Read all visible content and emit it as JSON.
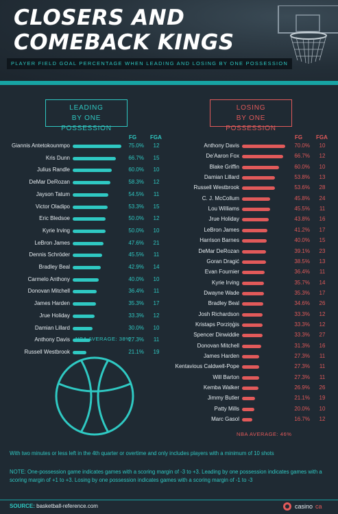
{
  "header": {
    "title_line1": "CLOSERS AND",
    "title_line2": "COMEBACK KINGS",
    "subtitle": "PLAYER FIELD GOAL PERCENTAGE WHEN LEADING AND LOSING BY ONE POSSESSION"
  },
  "leading": {
    "label_line1": "LEADING",
    "label_line2": "BY ONE POSSESSION",
    "fg_header": "FG",
    "fga_header": "FGA",
    "average": "NBA AVERAGE: 38%",
    "rows": [
      {
        "name": "Giannis Antetokounmpo",
        "fg": "75.0%",
        "fga": "12",
        "pct": 75.0
      },
      {
        "name": "Kris Dunn",
        "fg": "66.7%",
        "fga": "15",
        "pct": 66.7
      },
      {
        "name": "Julius Randle",
        "fg": "60.0%",
        "fga": "10",
        "pct": 60.0
      },
      {
        "name": "DeMar DeRozan",
        "fg": "58.3%",
        "fga": "12",
        "pct": 58.3
      },
      {
        "name": "Jayson Tatum",
        "fg": "54.5%",
        "fga": "11",
        "pct": 54.5
      },
      {
        "name": "Victor Oladipo",
        "fg": "53.3%",
        "fga": "15",
        "pct": 53.3
      },
      {
        "name": "Eric Bledsoe",
        "fg": "50.0%",
        "fga": "12",
        "pct": 50.0
      },
      {
        "name": "Kyrie Irving",
        "fg": "50.0%",
        "fga": "10",
        "pct": 50.0
      },
      {
        "name": "LeBron James",
        "fg": "47.6%",
        "fga": "21",
        "pct": 47.6
      },
      {
        "name": "Dennis Schröder",
        "fg": "45.5%",
        "fga": "11",
        "pct": 45.5
      },
      {
        "name": "Bradley Beal",
        "fg": "42.9%",
        "fga": "14",
        "pct": 42.9
      },
      {
        "name": "Carmelo Anthony",
        "fg": "40.0%",
        "fga": "10",
        "pct": 40.0
      },
      {
        "name": "Donovan Mitchell",
        "fg": "36.4%",
        "fga": "11",
        "pct": 36.4
      },
      {
        "name": "James Harden",
        "fg": "35.3%",
        "fga": "17",
        "pct": 35.3
      },
      {
        "name": "Jrue Holiday",
        "fg": "33.3%",
        "fga": "12",
        "pct": 33.3
      },
      {
        "name": "Damian Lillard",
        "fg": "30.0%",
        "fga": "10",
        "pct": 30.0
      },
      {
        "name": "Anthony Davis",
        "fg": "27.3%",
        "fga": "11",
        "pct": 27.3
      },
      {
        "name": "Russell Westbrook",
        "fg": "21.1%",
        "fga": "19",
        "pct": 21.1
      }
    ]
  },
  "losing": {
    "label_line1": "LOSING",
    "label_line2": "BY ONE POSSESSION",
    "fg_header": "FG",
    "fga_header": "FGA",
    "average": "NBA AVERAGE: 46%",
    "rows": [
      {
        "name": "Anthony Davis",
        "fg": "70.0%",
        "fga": "10",
        "pct": 70.0
      },
      {
        "name": "De'Aaron Fox",
        "fg": "66.7%",
        "fga": "12",
        "pct": 66.7
      },
      {
        "name": "Blake Griffin",
        "fg": "60.0%",
        "fga": "10",
        "pct": 60.0
      },
      {
        "name": "Damian Lillard",
        "fg": "53.8%",
        "fga": "13",
        "pct": 53.8
      },
      {
        "name": "Russell Westbrook",
        "fg": "53.6%",
        "fga": "28",
        "pct": 53.6
      },
      {
        "name": "C. J. McCollum",
        "fg": "45.8%",
        "fga": "24",
        "pct": 45.8
      },
      {
        "name": "Lou Williams",
        "fg": "45.5%",
        "fga": "11",
        "pct": 45.5
      },
      {
        "name": "Jrue Holiday",
        "fg": "43.8%",
        "fga": "16",
        "pct": 43.8
      },
      {
        "name": "LeBron James",
        "fg": "41.2%",
        "fga": "17",
        "pct": 41.2
      },
      {
        "name": "Harrison Barnes",
        "fg": "40.0%",
        "fga": "15",
        "pct": 40.0
      },
      {
        "name": "DeMar DeRozan",
        "fg": "39.1%",
        "fga": "23",
        "pct": 39.1
      },
      {
        "name": "Goran Dragić",
        "fg": "38.5%",
        "fga": "13",
        "pct": 38.5
      },
      {
        "name": "Evan Fournier",
        "fg": "36.4%",
        "fga": "11",
        "pct": 36.4
      },
      {
        "name": "Kyrie Irving",
        "fg": "35.7%",
        "fga": "14",
        "pct": 35.7
      },
      {
        "name": "Dwayne Wade",
        "fg": "35.3%",
        "fga": "17",
        "pct": 35.3
      },
      {
        "name": "Bradley Beal",
        "fg": "34.6%",
        "fga": "26",
        "pct": 34.6
      },
      {
        "name": "Josh Richardson",
        "fg": "33.3%",
        "fga": "12",
        "pct": 33.3
      },
      {
        "name": "Kristaps Porziņģis",
        "fg": "33.3%",
        "fga": "12",
        "pct": 33.3
      },
      {
        "name": "Spencer Dinwiddie",
        "fg": "33.3%",
        "fga": "27",
        "pct": 33.3
      },
      {
        "name": "Donovan Mitchell",
        "fg": "31.3%",
        "fga": "16",
        "pct": 31.3
      },
      {
        "name": "James Harden",
        "fg": "27.3%",
        "fga": "11",
        "pct": 27.3
      },
      {
        "name": "Kentavious Caldwell-Pope",
        "fg": "27.3%",
        "fga": "11",
        "pct": 27.3
      },
      {
        "name": "Will Barton",
        "fg": "27.3%",
        "fga": "11",
        "pct": 27.3
      },
      {
        "name": "Kemba Walker",
        "fg": "26.9%",
        "fga": "26",
        "pct": 26.9
      },
      {
        "name": "Jimmy Butler",
        "fg": "21.1%",
        "fga": "19",
        "pct": 21.1
      },
      {
        "name": "Patty Mills",
        "fg": "20.0%",
        "fga": "10",
        "pct": 20.0
      },
      {
        "name": "Marc Gasol",
        "fg": "16.7%",
        "fga": "12",
        "pct": 16.7
      }
    ]
  },
  "notes": {
    "scope": "With two minutes or less left in the 4th quarter or overtime and only includes players with a minimum of 10 shots",
    "definition": "NOTE: One-possession game indicates games with a scoring margin of -3 to +3. Leading by one possession indicates games with a scoring margin of +1 to +3. Losing by one possession indicates games with a scoring margin of -1 to -3"
  },
  "footer": {
    "source_label": "SOURCE:",
    "source_value": "basketball-reference.com",
    "brand": "casino",
    "brand_suffix": "ca"
  },
  "colors": {
    "leading_accent": "#2fc9c3",
    "losing_accent": "#e25a5a",
    "background": "#1f2a33",
    "teal_bar": "#17a4a4"
  }
}
